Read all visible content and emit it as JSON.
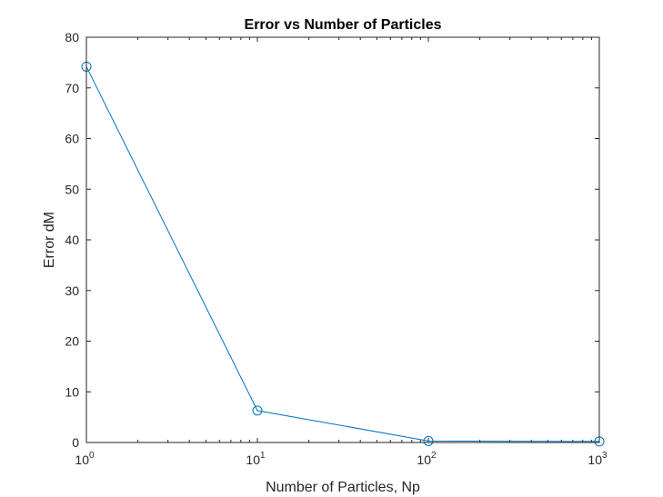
{
  "chart_data": {
    "type": "line",
    "title": "Error vs Number of Particles",
    "xlabel": "Number of Particles, Np",
    "ylabel": "Error dM",
    "xscale": "log",
    "xlim": [
      1,
      1000
    ],
    "ylim": [
      0,
      80
    ],
    "xticks": [
      {
        "base": "10",
        "exp": "0",
        "value": 1
      },
      {
        "base": "10",
        "exp": "1",
        "value": 10
      },
      {
        "base": "10",
        "exp": "2",
        "value": 100
      },
      {
        "base": "10",
        "exp": "3",
        "value": 1000
      }
    ],
    "yticks": [
      "0",
      "10",
      "20",
      "30",
      "40",
      "50",
      "60",
      "70",
      "80"
    ],
    "grid": false,
    "legend": "none",
    "series": [
      {
        "x": [
          1,
          10,
          100,
          1000
        ],
        "y": [
          74.2,
          6.3,
          0.3,
          0.2
        ],
        "marker": "circle",
        "color": "#0072BD"
      }
    ]
  }
}
